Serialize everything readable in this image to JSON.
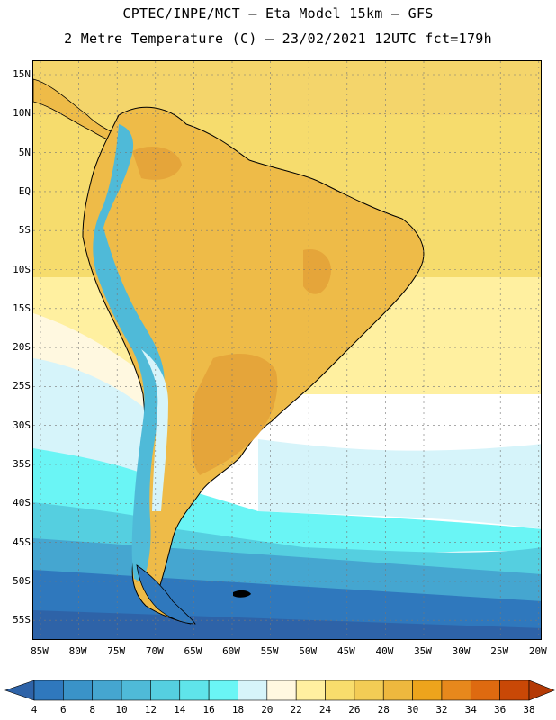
{
  "header": {
    "line1": "CPTEC/INPE/MCT –  Eta Model 15km – GFS",
    "line2": "2 Metre Temperature (C) – 23/02/2021 12UTC fct=179h"
  },
  "latitude_labels": [
    "15N",
    "10N",
    "5N",
    "EQ",
    "5S",
    "10S",
    "15S",
    "20S",
    "25S",
    "30S",
    "35S",
    "40S",
    "45S",
    "50S",
    "55S"
  ],
  "longitude_labels": [
    "85W",
    "80W",
    "75W",
    "70W",
    "65W",
    "60W",
    "55W",
    "50W",
    "45W",
    "40W",
    "35W",
    "30W",
    "25W",
    "20W"
  ],
  "colorbar": {
    "labels": [
      "4",
      "6",
      "8",
      "10",
      "12",
      "14",
      "16",
      "18",
      "20",
      "22",
      "24",
      "26",
      "28",
      "30",
      "32",
      "34",
      "36",
      "38"
    ],
    "colors": [
      "#2e63a8",
      "#2f78bd",
      "#3a93c8",
      "#45a6d0",
      "#4fbad8",
      "#55cfe0",
      "#5fe4ea",
      "#6af5f5",
      "#d6f4fa",
      "#fff8e0",
      "#fff0a0",
      "#f8dd6c",
      "#f3cc55",
      "#eeb83e",
      "#eda41c",
      "#e7881c",
      "#de6a10",
      "#c94806",
      "#b43a06"
    ]
  },
  "regions": {
    "ocean_north": "#f6dc6d",
    "ocean_tropical": "#f3d06a",
    "land_main": "#eebb48",
    "land_hot": "#e5a53a",
    "andes_cold": "#4fbad8",
    "andes_mid": "#d6f4fa",
    "ocean_cool": "#6af5f5",
    "ocean_cold": "#45a6d0",
    "ocean_colder": "#2f78bd",
    "ocean_coldest": "#2e63a8"
  }
}
